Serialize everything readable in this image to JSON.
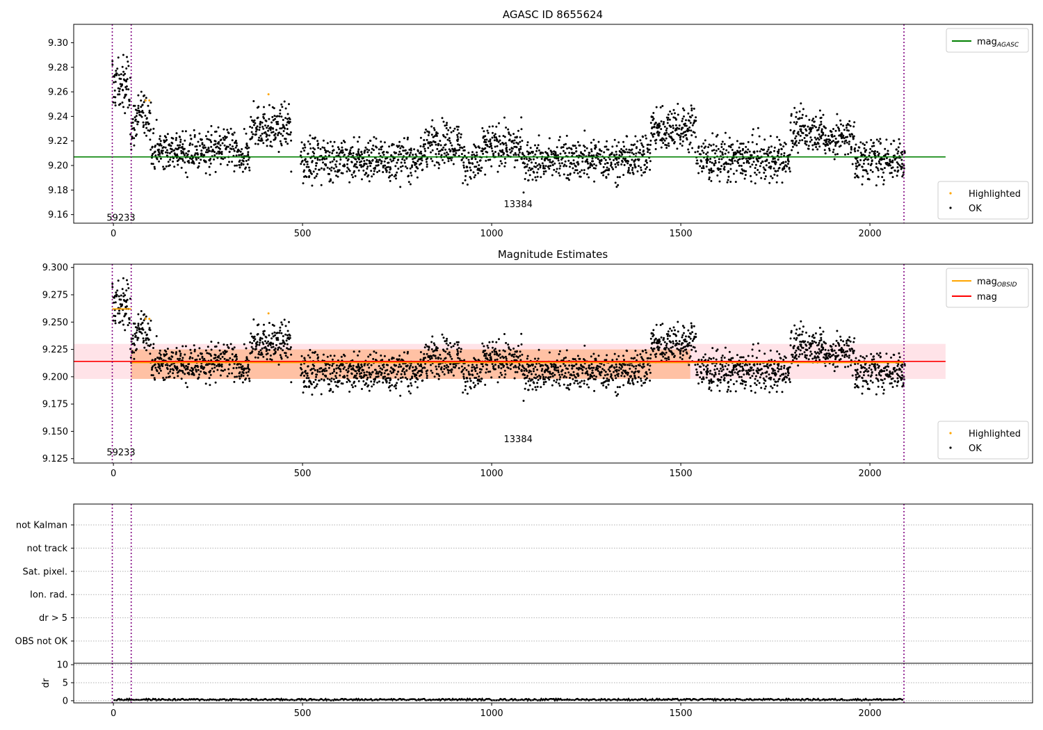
{
  "figure": {
    "title_top": "AGASC ID 8655624",
    "title_middle": "Magnitude Estimates"
  },
  "chart_data": [
    {
      "type": "scatter",
      "title": "AGASC ID 8655624",
      "xlim": [
        -105,
        2430
      ],
      "ylim": [
        9.153,
        9.315
      ],
      "x_ticks": [
        0,
        500,
        1000,
        1500,
        2000
      ],
      "y_ticks": [
        9.16,
        9.18,
        9.2,
        9.22,
        9.24,
        9.26,
        9.28,
        9.3
      ],
      "vlines": [
        -3,
        47,
        2090
      ],
      "annotations": [
        {
          "x": 20,
          "y": 9.155,
          "text": "59233"
        },
        {
          "x": 1070,
          "y": 9.166,
          "text": "13384"
        }
      ],
      "hlines": [
        {
          "name": "mag",
          "sub": "AGASC",
          "y": 9.207,
          "x_range": [
            -105,
            2200
          ],
          "color": "#008000"
        }
      ],
      "series": [
        {
          "name": "Highlighted",
          "color": "#ffa500"
        },
        {
          "name": "OK",
          "color": "#000000"
        }
      ],
      "highlighted_points": [
        [
          85,
          9.253
        ],
        [
          95,
          9.253
        ],
        [
          410,
          9.258
        ]
      ],
      "legend_upper": "top-right",
      "legend_lower": "bottom-right"
    },
    {
      "type": "scatter",
      "title": "Magnitude Estimates",
      "xlim": [
        -105,
        2430
      ],
      "ylim": [
        9.121,
        9.303
      ],
      "x_ticks": [
        0,
        500,
        1000,
        1500,
        2000
      ],
      "y_ticks": [
        9.125,
        9.15,
        9.175,
        9.2,
        9.225,
        9.25,
        9.275,
        9.3
      ],
      "vlines": [
        -3,
        47,
        2090
      ],
      "annotations": [
        {
          "x": 20,
          "y": 9.128,
          "text": "59233"
        },
        {
          "x": 1070,
          "y": 9.14,
          "text": "13384"
        }
      ],
      "hlines": [
        {
          "name": "mag",
          "sub": "OBSID",
          "segments": [
            [
              -3,
              47,
              9.262
            ],
            [
              47,
              2090,
              9.213
            ]
          ],
          "color": "#ffa500"
        },
        {
          "name": "mag",
          "sub": "",
          "y": 9.214,
          "x_range": [
            -105,
            2200
          ],
          "color": "#ff0000"
        }
      ],
      "bands": [
        {
          "x_range": [
            -105,
            2200
          ],
          "y_range": [
            9.198,
            9.23
          ],
          "color": "#ffc0cb"
        },
        {
          "x_range": [
            47,
            1525
          ],
          "y_range": [
            9.198,
            9.225
          ],
          "color": "#ffa060"
        }
      ],
      "series": [
        {
          "name": "Highlighted",
          "color": "#ffa500"
        },
        {
          "name": "OK",
          "color": "#000000"
        }
      ],
      "highlighted_points": [
        [
          85,
          9.253
        ],
        [
          95,
          9.253
        ],
        [
          410,
          9.258
        ]
      ],
      "legend_upper": "top-right",
      "legend_lower": "bottom-right"
    },
    {
      "type": "scatter",
      "category_labels": [
        "OBS not OK",
        "dr > 5",
        "Ion. rad.",
        "Sat. pixel.",
        "not track",
        "not Kalman"
      ],
      "xlim": [
        -105,
        2430
      ],
      "vlines": [
        -3,
        47,
        2090
      ]
    },
    {
      "type": "line",
      "ylabel": "dr",
      "xlim": [
        -105,
        2430
      ],
      "ylim": [
        -0.6,
        10.4
      ],
      "y_ticks": [
        0,
        5,
        10
      ],
      "x_ticks": [
        0,
        500,
        1000,
        1500,
        2000
      ],
      "x_range": [
        0,
        2090
      ],
      "typical_value": 0.3,
      "vlines": [
        -3,
        47,
        2090
      ]
    }
  ]
}
